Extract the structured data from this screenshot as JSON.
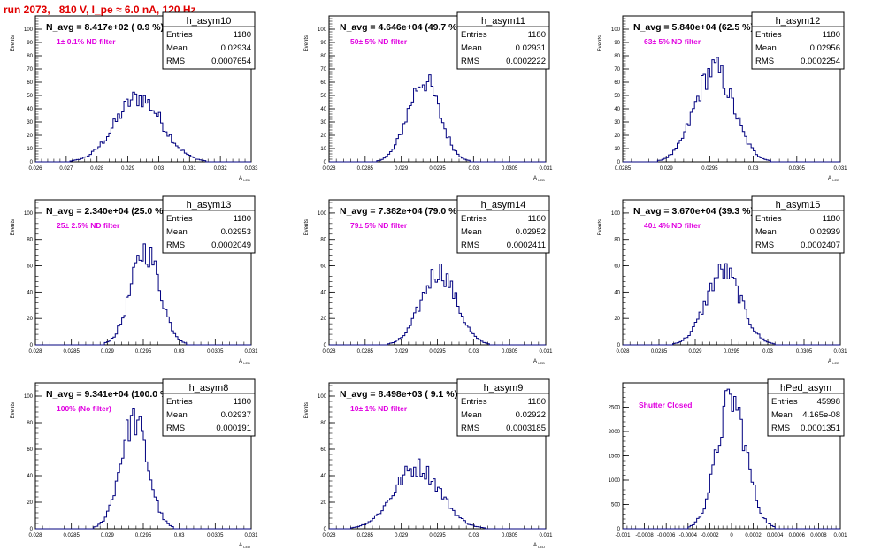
{
  "page": {
    "run_title": "run 2073,   810 V, I_pe ≈ 6.0 nA, 120 Hz"
  },
  "colors": {
    "run_title": "#e00000",
    "annotation": "#e000e0",
    "histogram": "#00007f",
    "axis": "#000000"
  },
  "chart_data": [
    {
      "type": "bar",
      "name": "h_asym10",
      "stats": {
        "entries": "1180",
        "mean": "0.02934",
        "rms": "0.0007654"
      },
      "navg": "N_avg = 8.417e+02 ( 0.9 %)",
      "filter": "1± 0.1% ND filter",
      "xlabel": "A",
      "xlabel_sub": "LED",
      "ylabel": "Events",
      "xlim": [
        0.026,
        0.033
      ],
      "ylim": [
        0,
        110
      ],
      "xticks": [
        "0.026",
        "0.027",
        "0.028",
        "0.029",
        "0.03",
        "0.031",
        "0.032",
        "0.033"
      ],
      "yticks": [
        "0",
        "10",
        "20",
        "30",
        "40",
        "50",
        "60",
        "70",
        "80",
        "90",
        "100"
      ],
      "peak": {
        "center": 0.02935,
        "sigma": 0.00076,
        "max": 52
      }
    },
    {
      "type": "bar",
      "name": "h_asym11",
      "stats": {
        "entries": "1180",
        "mean": "0.02931",
        "rms": "0.0002222"
      },
      "navg": "N_avg = 4.646e+04 (49.7 %)",
      "filter": "50± 5% ND filter",
      "xlabel": "A",
      "xlabel_sub": "LED",
      "ylabel": "Events",
      "xlim": [
        0.028,
        0.031
      ],
      "ylim": [
        0,
        110
      ],
      "xticks": [
        "0.028",
        "0.0285",
        "0.029",
        "0.0295",
        "0.03",
        "0.0305",
        "0.031"
      ],
      "yticks": [
        "0",
        "10",
        "20",
        "30",
        "40",
        "50",
        "60",
        "70",
        "80",
        "90",
        "100"
      ],
      "peak": {
        "center": 0.02931,
        "sigma": 0.00022,
        "max": 66
      }
    },
    {
      "type": "bar",
      "name": "h_asym12",
      "stats": {
        "entries": "1180",
        "mean": "0.02956",
        "rms": "0.0002254"
      },
      "navg": "N_avg = 5.840e+04 (62.5 %)",
      "filter": "63± 5% ND filter",
      "xlabel": "A",
      "xlabel_sub": "LED",
      "ylabel": "Events",
      "xlim": [
        0.0285,
        0.031
      ],
      "ylim": [
        0,
        110
      ],
      "xticks": [
        "0.0285",
        "0.029",
        "0.0295",
        "0.03",
        "0.0305",
        "0.031"
      ],
      "yticks": [
        "0",
        "10",
        "20",
        "30",
        "40",
        "50",
        "60",
        "70",
        "80",
        "90",
        "100"
      ],
      "peak": {
        "center": 0.02955,
        "sigma": 0.00022,
        "max": 75
      }
    },
    {
      "type": "bar",
      "name": "h_asym13",
      "stats": {
        "entries": "1180",
        "mean": "0.02953",
        "rms": "0.0002049"
      },
      "navg": "N_avg = 2.340e+04 (25.0 %)",
      "filter": "25± 2.5% ND filter",
      "xlabel": "A",
      "xlabel_sub": "LED",
      "ylabel": "Events",
      "xlim": [
        0.028,
        0.031
      ],
      "ylim": [
        0,
        110
      ],
      "xticks": [
        "0.028",
        "0.0285",
        "0.029",
        "0.0295",
        "0.03",
        "0.0305",
        "0.031"
      ],
      "yticks": [
        "0",
        "20",
        "40",
        "60",
        "80",
        "100"
      ],
      "peak": {
        "center": 0.02953,
        "sigma": 0.0002,
        "max": 77
      }
    },
    {
      "type": "bar",
      "name": "h_asym14",
      "stats": {
        "entries": "1180",
        "mean": "0.02952",
        "rms": "0.0002411"
      },
      "navg": "N_avg = 7.382e+04 (79.0 %)",
      "filter": "79± 5% ND filter",
      "xlabel": "A",
      "xlabel_sub": "LED",
      "ylabel": "Events",
      "xlim": [
        0.028,
        0.031
      ],
      "ylim": [
        0,
        110
      ],
      "xticks": [
        "0.028",
        "0.0285",
        "0.029",
        "0.0295",
        "0.03",
        "0.0305",
        "0.031"
      ],
      "yticks": [
        "0",
        "20",
        "40",
        "60",
        "80",
        "100"
      ],
      "peak": {
        "center": 0.02952,
        "sigma": 0.00024,
        "max": 60
      }
    },
    {
      "type": "bar",
      "name": "h_asym15",
      "stats": {
        "entries": "1180",
        "mean": "0.02939",
        "rms": "0.0002407"
      },
      "navg": "N_avg = 3.670e+04 (39.3 %)",
      "filter": "40± 4% ND filter",
      "xlabel": "A",
      "xlabel_sub": "LED",
      "ylabel": "Events",
      "xlim": [
        0.028,
        0.031
      ],
      "ylim": [
        0,
        110
      ],
      "xticks": [
        "0.028",
        "0.0285",
        "0.029",
        "0.0295",
        "0.03",
        "0.0305",
        "0.031"
      ],
      "yticks": [
        "0",
        "20",
        "40",
        "60",
        "80",
        "100"
      ],
      "peak": {
        "center": 0.02939,
        "sigma": 0.00024,
        "max": 60
      }
    },
    {
      "type": "bar",
      "name": "h_asym8",
      "stats": {
        "entries": "1180",
        "mean": "0.02937",
        "rms": "0.000191"
      },
      "navg": "N_avg = 9.341e+04 (100.0 %)",
      "filter": "100% (No filter)",
      "xlabel": "A",
      "xlabel_sub": "LED",
      "ylabel": "Events",
      "xlim": [
        0.028,
        0.031
      ],
      "ylim": [
        0,
        110
      ],
      "xticks": [
        "0.028",
        "0.0285",
        "0.029",
        "0.0295",
        "0.03",
        "0.0305",
        "0.031"
      ],
      "yticks": [
        "0",
        "20",
        "40",
        "60",
        "80",
        "100"
      ],
      "peak": {
        "center": 0.02937,
        "sigma": 0.00019,
        "max": 88
      }
    },
    {
      "type": "bar",
      "name": "h_asym9",
      "stats": {
        "entries": "1180",
        "mean": "0.02922",
        "rms": "0.0003185"
      },
      "navg": "N_avg = 8.498e+03 ( 9.1 %)",
      "filter": "10± 1% ND filter",
      "xlabel": "A",
      "xlabel_sub": "LED",
      "ylabel": "Events",
      "xlim": [
        0.028,
        0.031
      ],
      "ylim": [
        0,
        110
      ],
      "xticks": [
        "0.028",
        "0.0285",
        "0.029",
        "0.0295",
        "0.03",
        "0.0305",
        "0.031"
      ],
      "yticks": [
        "0",
        "20",
        "40",
        "60",
        "80",
        "100"
      ],
      "peak": {
        "center": 0.02922,
        "sigma": 0.00032,
        "max": 50
      }
    },
    {
      "type": "bar",
      "name": "hPed_asym",
      "stats": {
        "entries": "45998",
        "mean": "4.165e-08",
        "rms": "0.0001351"
      },
      "navg": "",
      "filter": "Shutter Closed",
      "xlabel": "",
      "xlabel_sub": "",
      "ylabel": "",
      "xlim": [
        -0.001,
        0.001
      ],
      "ylim": [
        0,
        3000
      ],
      "xticks": [
        "-0.001",
        "-0.0008",
        "-0.0006",
        "-0.0004",
        "-0.0002",
        "0",
        "0.0002",
        "0.0004",
        "0.0006",
        "0.0008",
        "0.001"
      ],
      "yticks": [
        "0",
        "500",
        "1000",
        "1500",
        "2000",
        "2500"
      ],
      "peak": {
        "center": 0.0,
        "sigma": 0.000135,
        "max": 2850
      }
    }
  ]
}
